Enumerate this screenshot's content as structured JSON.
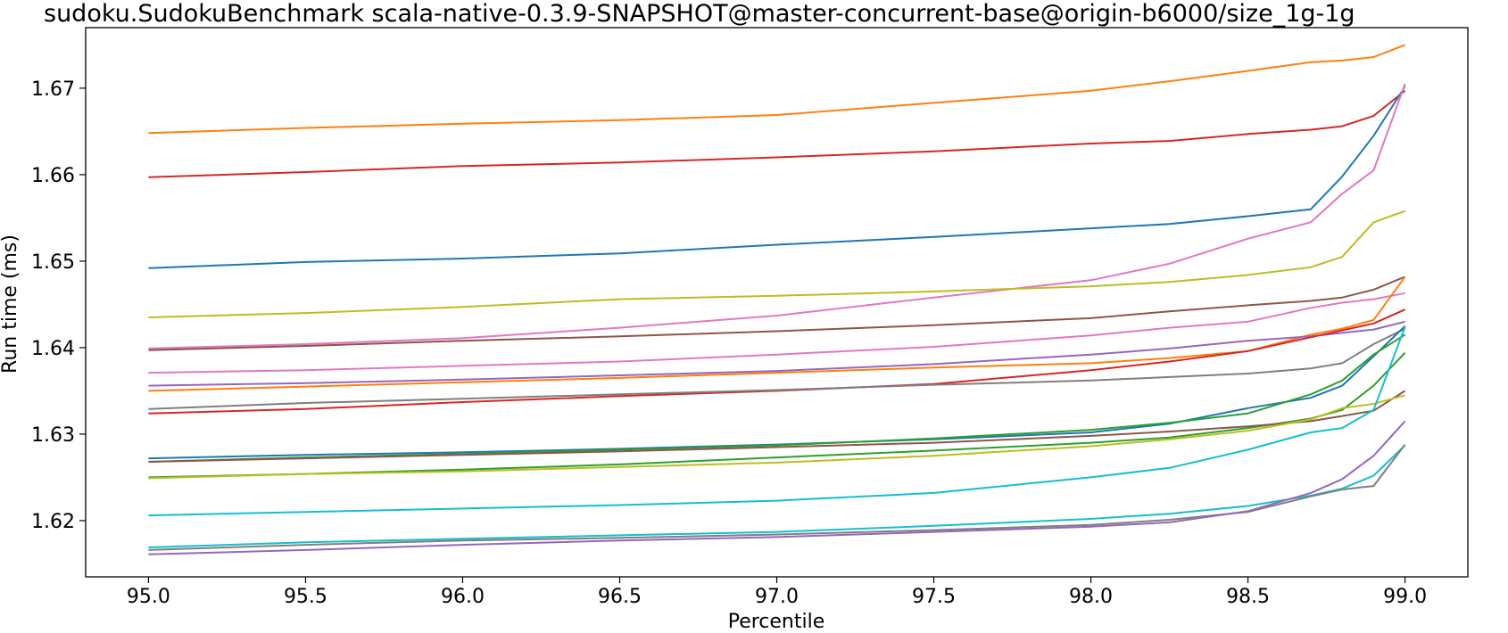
{
  "chart_data": {
    "type": "line",
    "title": "sudoku.SudokuBenchmark scala-native-0.3.9-SNAPSHOT@master-concurrent-base@origin-b6000/size_1g-1g",
    "xlabel": "Percentile",
    "ylabel": "Run time (ms)",
    "xlim": [
      94.8,
      99.2
    ],
    "ylim": [
      1.6135,
      1.677
    ],
    "grid": false,
    "legend": "none",
    "xticks": [
      "95.0",
      "95.5",
      "96.0",
      "96.5",
      "97.0",
      "97.5",
      "98.0",
      "98.5",
      "99.0"
    ],
    "xtick_values": [
      95.0,
      95.5,
      96.0,
      96.5,
      97.0,
      97.5,
      98.0,
      98.5,
      99.0
    ],
    "yticks": [
      "1.62",
      "1.63",
      "1.64",
      "1.65",
      "1.66",
      "1.67"
    ],
    "ytick_values": [
      1.62,
      1.63,
      1.64,
      1.65,
      1.66,
      1.67
    ],
    "x": [
      95.0,
      95.5,
      96.0,
      96.5,
      97.0,
      97.5,
      98.0,
      98.25,
      98.5,
      98.7,
      98.8,
      98.9,
      99.0
    ],
    "series": [
      {
        "color": "#ff7f0e",
        "values": [
          1.6648,
          1.6654,
          1.6659,
          1.6663,
          1.6669,
          1.6683,
          1.6697,
          1.6708,
          1.672,
          1.673,
          1.6732,
          1.6736,
          1.675
        ]
      },
      {
        "color": "#d62728",
        "values": [
          1.6597,
          1.6603,
          1.661,
          1.6614,
          1.662,
          1.6627,
          1.6636,
          1.6639,
          1.6647,
          1.6652,
          1.6656,
          1.6668,
          1.6697
        ]
      },
      {
        "color": "#1f77b4",
        "values": [
          1.6492,
          1.6499,
          1.6503,
          1.6509,
          1.6519,
          1.6528,
          1.6538,
          1.6543,
          1.6552,
          1.656,
          1.6598,
          1.6645,
          1.6702
        ]
      },
      {
        "color": "#e377c2",
        "values": [
          1.6399,
          1.6404,
          1.6411,
          1.6423,
          1.6437,
          1.6458,
          1.6478,
          1.6497,
          1.6526,
          1.6545,
          1.6578,
          1.6605,
          1.6705
        ]
      },
      {
        "color": "#bcbd22",
        "values": [
          1.6435,
          1.644,
          1.6447,
          1.6456,
          1.646,
          1.6465,
          1.6471,
          1.6476,
          1.6484,
          1.6493,
          1.6505,
          1.6545,
          1.6558
        ]
      },
      {
        "color": "#8c564b",
        "values": [
          1.6397,
          1.6402,
          1.6408,
          1.6413,
          1.6419,
          1.6426,
          1.6434,
          1.6442,
          1.6449,
          1.6454,
          1.6458,
          1.6467,
          1.6482
        ]
      },
      {
        "color": "#e377c2",
        "values": [
          1.6371,
          1.6374,
          1.6379,
          1.6384,
          1.6392,
          1.6401,
          1.6414,
          1.6423,
          1.643,
          1.6446,
          1.6452,
          1.6456,
          1.6463
        ]
      },
      {
        "color": "#ff7f0e",
        "values": [
          1.635,
          1.6355,
          1.636,
          1.6365,
          1.6371,
          1.6377,
          1.6382,
          1.6388,
          1.6396,
          1.6415,
          1.6422,
          1.6432,
          1.6482
        ]
      },
      {
        "color": "#9467bd",
        "values": [
          1.6356,
          1.6359,
          1.6363,
          1.6368,
          1.6373,
          1.6381,
          1.6392,
          1.6399,
          1.6408,
          1.6413,
          1.6417,
          1.6421,
          1.643
        ]
      },
      {
        "color": "#d62728",
        "values": [
          1.6324,
          1.6329,
          1.6337,
          1.6344,
          1.635,
          1.6358,
          1.6374,
          1.6384,
          1.6396,
          1.6412,
          1.642,
          1.6428,
          1.6444
        ]
      },
      {
        "color": "#7f7f7f",
        "values": [
          1.6329,
          1.6336,
          1.6341,
          1.6346,
          1.6351,
          1.6357,
          1.6362,
          1.6366,
          1.637,
          1.6376,
          1.6382,
          1.6404,
          1.6422
        ]
      },
      {
        "color": "#1f77b4",
        "values": [
          1.6272,
          1.6276,
          1.6279,
          1.6283,
          1.6288,
          1.6294,
          1.6302,
          1.6312,
          1.633,
          1.6342,
          1.6356,
          1.639,
          1.6425
        ]
      },
      {
        "color": "#2ca02c",
        "values": [
          1.6268,
          1.6273,
          1.6277,
          1.6282,
          1.6287,
          1.6295,
          1.6305,
          1.6313,
          1.6324,
          1.6346,
          1.6362,
          1.6392,
          1.6415
        ]
      },
      {
        "color": "#2ca02c",
        "values": [
          1.625,
          1.6254,
          1.6259,
          1.6265,
          1.6273,
          1.6281,
          1.629,
          1.6296,
          1.6307,
          1.6318,
          1.6328,
          1.6356,
          1.6394
        ]
      },
      {
        "color": "#8c564b",
        "values": [
          1.6268,
          1.6272,
          1.6276,
          1.628,
          1.6285,
          1.629,
          1.6298,
          1.6303,
          1.6309,
          1.6315,
          1.6321,
          1.6327,
          1.635
        ]
      },
      {
        "color": "#bcbd22",
        "values": [
          1.6249,
          1.6254,
          1.6257,
          1.6262,
          1.6267,
          1.6275,
          1.6286,
          1.6294,
          1.6304,
          1.6317,
          1.633,
          1.6335,
          1.6345
        ]
      },
      {
        "color": "#17becf",
        "values": [
          1.6206,
          1.621,
          1.6214,
          1.6218,
          1.6223,
          1.6232,
          1.625,
          1.6261,
          1.6282,
          1.6302,
          1.6307,
          1.6328,
          1.6424
        ]
      },
      {
        "color": "#17becf",
        "values": [
          1.6169,
          1.6175,
          1.6179,
          1.6183,
          1.6187,
          1.6194,
          1.6202,
          1.6208,
          1.6217,
          1.6229,
          1.6237,
          1.6252,
          1.6287
        ]
      },
      {
        "color": "#7f7f7f",
        "values": [
          1.6166,
          1.6172,
          1.6177,
          1.618,
          1.6184,
          1.6189,
          1.6195,
          1.6201,
          1.621,
          1.6228,
          1.6236,
          1.624,
          1.6288
        ]
      },
      {
        "color": "#9467bd",
        "values": [
          1.6161,
          1.6166,
          1.6172,
          1.6177,
          1.6181,
          1.6187,
          1.6193,
          1.6198,
          1.6211,
          1.6232,
          1.6248,
          1.6275,
          1.6315
        ]
      }
    ]
  }
}
